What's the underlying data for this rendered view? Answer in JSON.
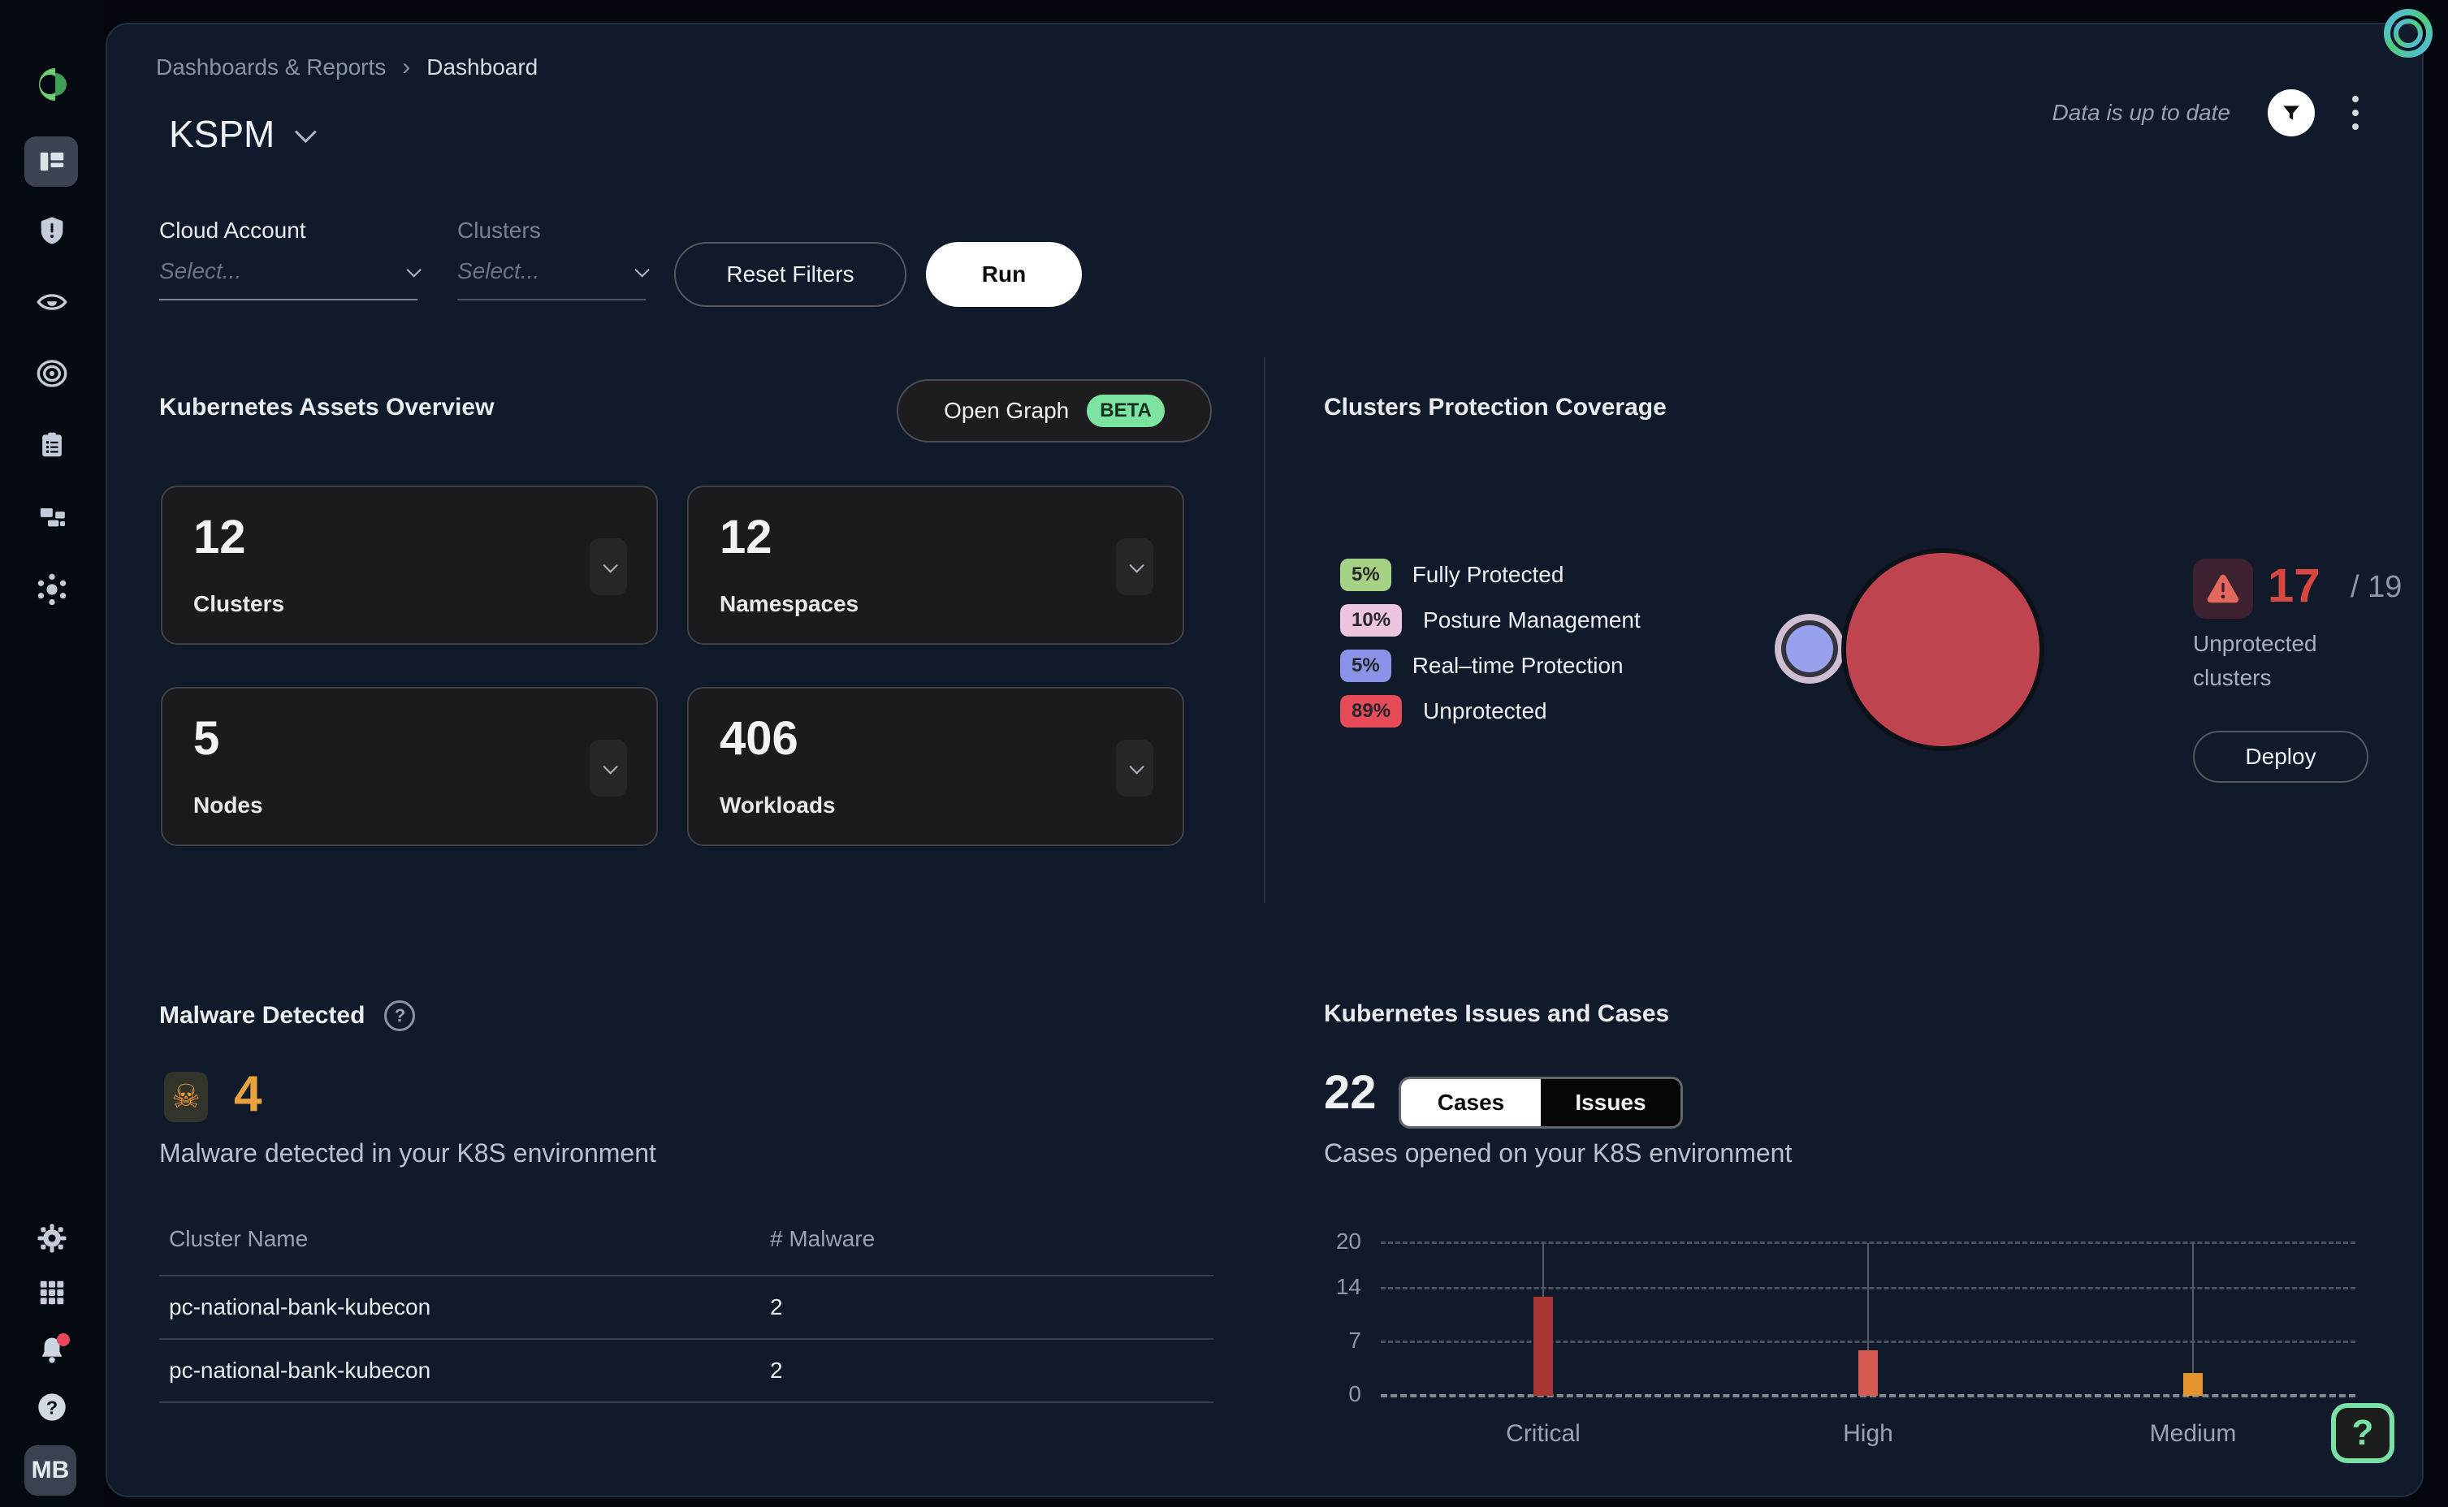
{
  "app": {
    "data_status": "Data is up to date",
    "avatar_initials": "MB"
  },
  "breadcrumb": {
    "parent": "Dashboards & Reports",
    "separator": "›",
    "current": "Dashboard"
  },
  "page": {
    "title": "KSPM"
  },
  "filters": {
    "cloud_account_label": "Cloud Account",
    "cloud_account_placeholder": "Select...",
    "clusters_label": "Clusters",
    "clusters_placeholder": "Select...",
    "reset_label": "Reset Filters",
    "run_label": "Run"
  },
  "assets_overview": {
    "title": "Kubernetes Assets Overview",
    "open_graph_label": "Open Graph",
    "beta_label": "BETA",
    "cards": [
      {
        "value": "12",
        "label": "Clusters"
      },
      {
        "value": "12",
        "label": "Namespaces"
      },
      {
        "value": "5",
        "label": "Nodes"
      },
      {
        "value": "406",
        "label": "Workloads"
      }
    ]
  },
  "protection": {
    "title": "Clusters Protection Coverage",
    "legend": [
      {
        "pct": "5%",
        "label": "Fully Protected",
        "color": "#a5d284"
      },
      {
        "pct": "10%",
        "label": "Posture Management",
        "color": "#eec5df"
      },
      {
        "pct": "5%",
        "label": "Real–time Protection",
        "color": "#8b93e9"
      },
      {
        "pct": "89%",
        "label": "Unprotected",
        "color": "#e64b57"
      }
    ],
    "bubble_colors": {
      "unprotected": "#c04450",
      "inner": "#98a1ee",
      "ring": "#cfbdd2"
    },
    "unprotected_count": "17",
    "total": "/ 19",
    "unprotected_caption_line1": "Unprotected",
    "unprotected_caption_line2": "clusters",
    "deploy_label": "Deploy"
  },
  "malware": {
    "title": "Malware Detected",
    "help_glyph": "?",
    "skull_glyph": "☠",
    "count": "4",
    "caption": "Malware detected in your K8S environment",
    "table": {
      "headers": [
        "Cluster Name",
        "# Malware"
      ],
      "rows": [
        [
          "pc-national-bank-kubecon",
          "2"
        ],
        [
          "pc-national-bank-kubecon",
          "2"
        ]
      ]
    }
  },
  "issues_cases": {
    "title": "Kubernetes Issues and Cases",
    "count": "22",
    "tabs": [
      {
        "label": "Cases"
      },
      {
        "label": "Issues"
      }
    ],
    "caption": "Cases opened on your K8S environment"
  },
  "chart_data": {
    "type": "bar",
    "categories": [
      "Critical",
      "High",
      "Medium"
    ],
    "values": [
      13,
      6,
      3
    ],
    "colors": [
      "#a93633",
      "#d45a52",
      "#e3942f"
    ],
    "yticks": [
      0,
      7,
      14,
      20
    ],
    "ylim": [
      0,
      20
    ],
    "grid": "dashed horizontal",
    "legend_position": "none",
    "title": "Cases opened on your K8S environment"
  },
  "floating_help_glyph": "?"
}
